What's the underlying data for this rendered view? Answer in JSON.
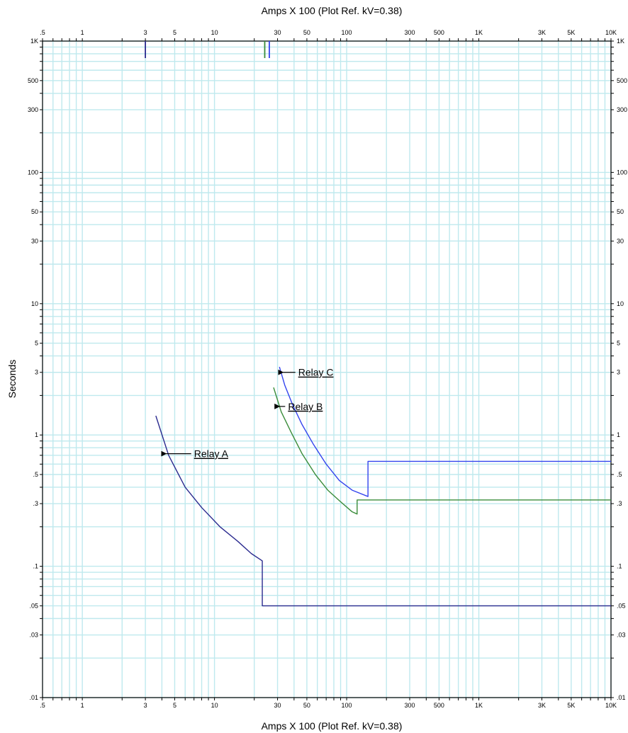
{
  "chart_data": {
    "type": "line",
    "xlabel": "Amps  X  100 (Plot Ref. kV=0.38)",
    "ylabel": "Seconds",
    "x_scale": "log",
    "y_scale": "log",
    "xlim": [
      0.5,
      10000
    ],
    "ylim": [
      0.01,
      1000
    ],
    "grid": true,
    "x_tick_labels": [
      {
        "v": 0.5,
        "label": ".5"
      },
      {
        "v": 1,
        "label": "1"
      },
      {
        "v": 3,
        "label": "3"
      },
      {
        "v": 5,
        "label": "5"
      },
      {
        "v": 10,
        "label": "10"
      },
      {
        "v": 30,
        "label": "30"
      },
      {
        "v": 50,
        "label": "50"
      },
      {
        "v": 100,
        "label": "100"
      },
      {
        "v": 300,
        "label": "300"
      },
      {
        "v": 500,
        "label": "500"
      },
      {
        "v": 1000,
        "label": "1K"
      },
      {
        "v": 3000,
        "label": "3K"
      },
      {
        "v": 5000,
        "label": "5K"
      },
      {
        "v": 10000,
        "label": "10K"
      }
    ],
    "y_tick_labels": [
      {
        "v": 1000,
        "label": "1K"
      },
      {
        "v": 500,
        "label": "500"
      },
      {
        "v": 300,
        "label": "300"
      },
      {
        "v": 100,
        "label": "100"
      },
      {
        "v": 50,
        "label": "50"
      },
      {
        "v": 30,
        "label": "30"
      },
      {
        "v": 10,
        "label": "10"
      },
      {
        "v": 5,
        "label": "5"
      },
      {
        "v": 3,
        "label": "3"
      },
      {
        "v": 1,
        "label": "1"
      },
      {
        "v": 0.5,
        "label": ".5"
      },
      {
        "v": 0.3,
        "label": ".3"
      },
      {
        "v": 0.1,
        "label": ".1"
      },
      {
        "v": 0.05,
        "label": ".05"
      },
      {
        "v": 0.03,
        "label": ".03"
      },
      {
        "v": 0.01,
        "label": ".01"
      }
    ],
    "series": [
      {
        "name": "Relay A",
        "color": "#2b2b8f",
        "points": [
          [
            3.6,
            1.4
          ],
          [
            4.5,
            0.7
          ],
          [
            6,
            0.4
          ],
          [
            8,
            0.28
          ],
          [
            11,
            0.2
          ],
          [
            15,
            0.155
          ],
          [
            19,
            0.125
          ],
          [
            23,
            0.11
          ],
          [
            23,
            0.05
          ],
          [
            10000,
            0.05
          ]
        ]
      },
      {
        "name": "Relay B",
        "color": "#3a8c3a",
        "points": [
          [
            28,
            2.3
          ],
          [
            32,
            1.5
          ],
          [
            38,
            1.05
          ],
          [
            46,
            0.72
          ],
          [
            58,
            0.5
          ],
          [
            72,
            0.38
          ],
          [
            90,
            0.31
          ],
          [
            110,
            0.26
          ],
          [
            120,
            0.25
          ],
          [
            120,
            0.32
          ],
          [
            10000,
            0.32
          ]
        ]
      },
      {
        "name": "Relay C",
        "color": "#3344ee",
        "points": [
          [
            31,
            3.3
          ],
          [
            34,
            2.4
          ],
          [
            39,
            1.7
          ],
          [
            46,
            1.2
          ],
          [
            56,
            0.85
          ],
          [
            70,
            0.6
          ],
          [
            88,
            0.45
          ],
          [
            110,
            0.38
          ],
          [
            145,
            0.34
          ],
          [
            145,
            0.63
          ],
          [
            10000,
            0.63
          ]
        ]
      }
    ],
    "pickup_markers": [
      {
        "x": 3,
        "color": "#2b2b8f"
      },
      {
        "x": 24,
        "color": "#3a8c3a"
      },
      {
        "x": 26,
        "color": "#3344ee"
      }
    ],
    "annotations": [
      {
        "text": "Relay A",
        "arrow_to": [
          4.3,
          0.72
        ],
        "text_at": [
          7,
          0.72
        ]
      },
      {
        "text": "Relay B",
        "arrow_to": [
          31,
          1.65
        ],
        "text_at": [
          36,
          1.65
        ]
      },
      {
        "text": "Relay C",
        "arrow_to": [
          33,
          3.0
        ],
        "text_at": [
          43,
          3.0
        ]
      }
    ]
  }
}
